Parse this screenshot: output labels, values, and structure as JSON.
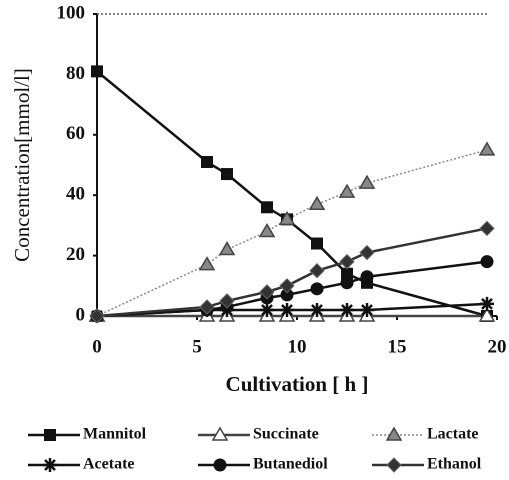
{
  "chart_data": {
    "type": "line",
    "x_label": "Cultivation [ h ]",
    "y_label": "Concentration[mmol/l]",
    "x": [
      0,
      5.5,
      6.5,
      8.5,
      9.5,
      11,
      12.5,
      13.5,
      19.5
    ],
    "series": [
      {
        "name": "Mannitol",
        "color": "#111111",
        "marker": "square",
        "dash": "solid",
        "values": [
          81,
          51,
          47,
          36,
          32,
          24,
          14,
          11,
          0
        ]
      },
      {
        "name": "Succinate",
        "color": "#444444",
        "marker": "triangle-open",
        "dash": "solid",
        "values": [
          0,
          0,
          0,
          0,
          0,
          0,
          0,
          0,
          0
        ]
      },
      {
        "name": "Lactate",
        "color": "#888888",
        "marker": "triangle",
        "dash": "dotted",
        "values": [
          0,
          17,
          22,
          28,
          32,
          37,
          41,
          44,
          55
        ]
      },
      {
        "name": "Acetate",
        "color": "#111111",
        "marker": "star",
        "dash": "solid",
        "values": [
          0,
          2,
          2,
          2,
          2,
          2,
          2,
          2,
          4
        ]
      },
      {
        "name": "Butanediol",
        "color": "#111111",
        "marker": "circle",
        "dash": "solid",
        "values": [
          0,
          2,
          3,
          6,
          7,
          9,
          11,
          13,
          18
        ]
      },
      {
        "name": "Ethanol",
        "color": "#333333",
        "marker": "diamond",
        "dash": "solid",
        "values": [
          0,
          3,
          5,
          8,
          10,
          15,
          18,
          21,
          29
        ]
      }
    ],
    "xlim": [
      0,
      20
    ],
    "xticks": [
      0,
      5,
      10,
      15,
      20
    ],
    "ylim": [
      0,
      100
    ],
    "yticks": [
      0,
      20,
      40,
      60,
      80,
      100
    ],
    "grid": false,
    "legend": "bottom"
  }
}
